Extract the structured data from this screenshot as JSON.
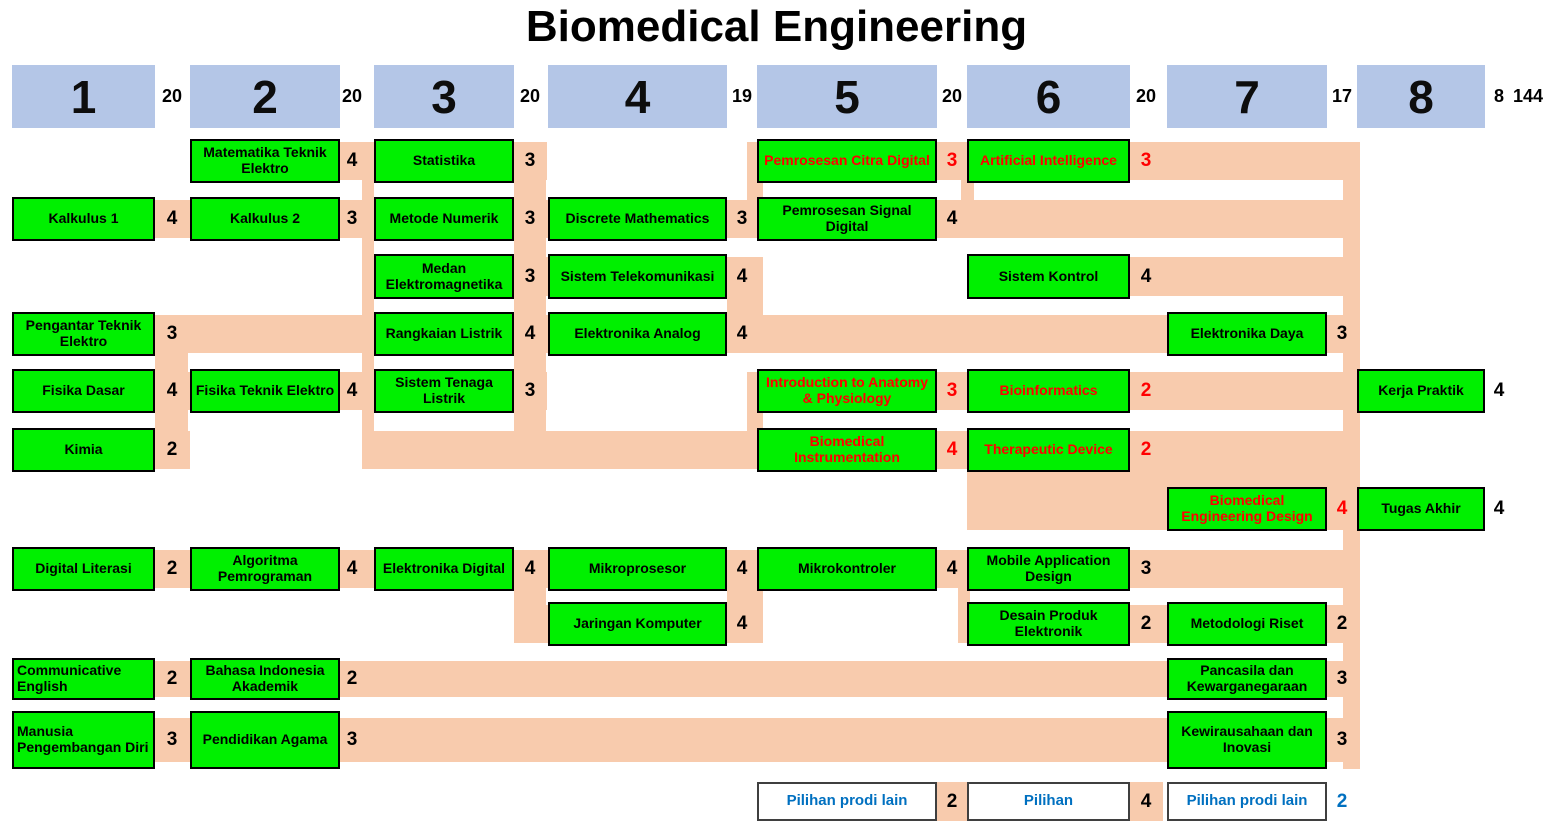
{
  "title": "Biomedical Engineering",
  "total_credits": "144",
  "colors": {
    "course_fill": "#00f000",
    "band": "#f8cbad",
    "semester_fill": "#b4c6e7",
    "highlight_text": "#ff0000",
    "elective_text": "#0070c0"
  },
  "semesters": [
    {
      "number": "1",
      "credits": "20"
    },
    {
      "number": "2",
      "credits": "20"
    },
    {
      "number": "3",
      "credits": "20"
    },
    {
      "number": "4",
      "credits": "19"
    },
    {
      "number": "5",
      "credits": "20"
    },
    {
      "number": "6",
      "credits": "20"
    },
    {
      "number": "7",
      "credits": "17"
    },
    {
      "number": "8",
      "credits": "8"
    }
  ],
  "courses": [
    {
      "name": "Matematika Teknik Elektro",
      "semester": 2,
      "row": 1,
      "credits": "4",
      "highlight": false
    },
    {
      "name": "Statistika",
      "semester": 3,
      "row": 1,
      "credits": "3",
      "highlight": false
    },
    {
      "name": "Pemrosesan Citra Digital",
      "semester": 5,
      "row": 1,
      "credits": "3",
      "highlight": true
    },
    {
      "name": "Artificial Intelligence",
      "semester": 6,
      "row": 1,
      "credits": "3",
      "highlight": true
    },
    {
      "name": "Kalkulus 1",
      "semester": 1,
      "row": 2,
      "credits": "4",
      "highlight": false
    },
    {
      "name": "Kalkulus 2",
      "semester": 2,
      "row": 2,
      "credits": "3",
      "highlight": false
    },
    {
      "name": "Metode Numerik",
      "semester": 3,
      "row": 2,
      "credits": "3",
      "highlight": false
    },
    {
      "name": "Discrete Mathematics",
      "semester": 4,
      "row": 2,
      "credits": "3",
      "highlight": false
    },
    {
      "name": "Pemrosesan Signal Digital",
      "semester": 5,
      "row": 2,
      "credits": "4",
      "highlight": false
    },
    {
      "name": "Medan Elektromagnetika",
      "semester": 3,
      "row": 3,
      "credits": "3",
      "highlight": false
    },
    {
      "name": "Sistem Telekomunikasi",
      "semester": 4,
      "row": 3,
      "credits": "4",
      "highlight": false
    },
    {
      "name": "Sistem Kontrol",
      "semester": 6,
      "row": 3,
      "credits": "4",
      "highlight": false
    },
    {
      "name": "Pengantar Teknik Elektro",
      "semester": 1,
      "row": 4,
      "credits": "3",
      "highlight": false
    },
    {
      "name": "Rangkaian Listrik",
      "semester": 3,
      "row": 4,
      "credits": "4",
      "highlight": false
    },
    {
      "name": "Elektronika Analog",
      "semester": 4,
      "row": 4,
      "credits": "4",
      "highlight": false
    },
    {
      "name": "Elektronika Daya",
      "semester": 7,
      "row": 4,
      "credits": "3",
      "highlight": false
    },
    {
      "name": "Fisika Dasar",
      "semester": 1,
      "row": 5,
      "credits": "4",
      "highlight": false
    },
    {
      "name": "Fisika Teknik Elektro",
      "semester": 2,
      "row": 5,
      "credits": "4",
      "highlight": false
    },
    {
      "name": "Sistem Tenaga Listrik",
      "semester": 3,
      "row": 5,
      "credits": "3",
      "highlight": false
    },
    {
      "name": "Introduction to Anatomy & Physiology",
      "semester": 5,
      "row": 5,
      "credits": "3",
      "highlight": true
    },
    {
      "name": "Bioinformatics",
      "semester": 6,
      "row": 5,
      "credits": "2",
      "highlight": true
    },
    {
      "name": "Kerja Praktik",
      "semester": 8,
      "row": 5,
      "credits": "4",
      "highlight": false
    },
    {
      "name": "Kimia",
      "semester": 1,
      "row": 6,
      "credits": "2",
      "highlight": false
    },
    {
      "name": "Biomedical Instrumentation",
      "semester": 5,
      "row": 6,
      "credits": "4",
      "highlight": true
    },
    {
      "name": "Therapeutic Device",
      "semester": 6,
      "row": 6,
      "credits": "2",
      "highlight": true
    },
    {
      "name": "Biomedical Engineering Design",
      "semester": 7,
      "row": 7,
      "credits": "4",
      "highlight": true
    },
    {
      "name": "Tugas Akhir",
      "semester": 8,
      "row": 7,
      "credits": "4",
      "highlight": false
    },
    {
      "name": "Digital Literasi",
      "semester": 1,
      "row": 8,
      "credits": "2",
      "highlight": false
    },
    {
      "name": "Algoritma Pemrograman",
      "semester": 2,
      "row": 8,
      "credits": "4",
      "highlight": false
    },
    {
      "name": "Elektronika Digital",
      "semester": 3,
      "row": 8,
      "credits": "4",
      "highlight": false
    },
    {
      "name": "Mikroprosesor",
      "semester": 4,
      "row": 8,
      "credits": "4",
      "highlight": false
    },
    {
      "name": "Mikrokontroler",
      "semester": 5,
      "row": 8,
      "credits": "4",
      "highlight": false
    },
    {
      "name": "Mobile Application Design",
      "semester": 6,
      "row": 8,
      "credits": "3",
      "highlight": false
    },
    {
      "name": "Jaringan Komputer",
      "semester": 4,
      "row": 9,
      "credits": "4",
      "highlight": false
    },
    {
      "name": "Desain Produk Elektronik",
      "semester": 6,
      "row": 9,
      "credits": "2",
      "highlight": false
    },
    {
      "name": "Metodologi Riset",
      "semester": 7,
      "row": 9,
      "credits": "2",
      "highlight": false
    },
    {
      "name": "Communicative English",
      "semester": 1,
      "row": 10,
      "credits": "2",
      "highlight": false,
      "align": "left"
    },
    {
      "name": "Bahasa Indonesia Akademik",
      "semester": 2,
      "row": 10,
      "credits": "2",
      "highlight": false
    },
    {
      "name": "Pancasila dan Kewarganegaraan",
      "semester": 7,
      "row": 10,
      "credits": "3",
      "highlight": false
    },
    {
      "name": "Manusia Pengembangan Diri",
      "semester": 1,
      "row": 11,
      "credits": "3",
      "highlight": false,
      "align": "left"
    },
    {
      "name": "Pendidikan Agama",
      "semester": 2,
      "row": 11,
      "credits": "3",
      "highlight": false
    },
    {
      "name": "Kewirausahaan dan Inovasi",
      "semester": 7,
      "row": 11,
      "credits": "3",
      "highlight": false
    }
  ],
  "electives": [
    {
      "label": "Pilihan prodi lain",
      "semester": 5,
      "credits": "2",
      "credit_color": "black"
    },
    {
      "label": "Pilihan",
      "semester": 6,
      "credits": "4",
      "credit_color": "black"
    },
    {
      "label": "Pilihan prodi lain",
      "semester": 7,
      "credits": "2",
      "credit_color": "blue"
    }
  ]
}
